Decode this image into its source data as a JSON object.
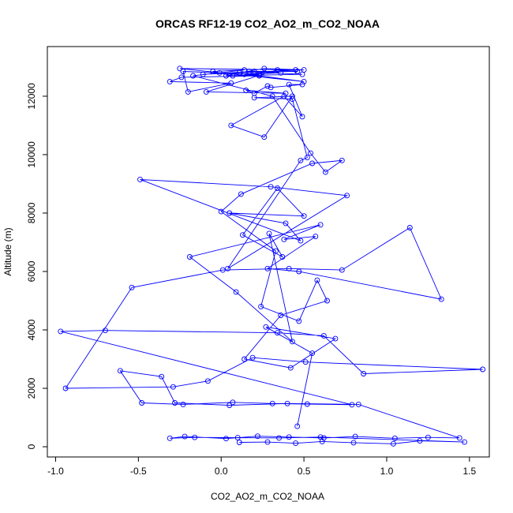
{
  "chart_data": {
    "type": "line",
    "title": "ORCAS RF12-19 CO2_AO2_m_CO2_NOAA",
    "xlabel": "CO2_AO2_m_CO2_NOAA",
    "ylabel": "Altitude (m)",
    "xlim": [
      -1.05,
      1.62
    ],
    "ylim": [
      -350,
      13700
    ],
    "xticks": [
      -1.0,
      -0.5,
      0.0,
      0.5,
      1.0,
      1.5
    ],
    "xtick_labels": [
      "-1.0",
      "-0.5",
      "0.0",
      "0.5",
      "1.0",
      "1.5"
    ],
    "yticks": [
      0,
      2000,
      4000,
      6000,
      8000,
      10000,
      12000
    ],
    "ytick_labels": [
      "0",
      "2000",
      "4000",
      "6000",
      "8000",
      "10000",
      "12000"
    ],
    "grid": false,
    "series": [
      {
        "color": "#0000ff",
        "x": [
          0.11,
          0.28,
          0.45,
          0.61,
          0.8,
          1.04,
          1.2,
          1.47,
          0.6,
          0.35,
          0.1,
          -0.16,
          -0.31,
          -0.22,
          0.03,
          0.22,
          0.41,
          0.62,
          0.81,
          1.05,
          1.25,
          1.44,
          0.83,
          0.4,
          0.05,
          -0.28,
          -0.36,
          -0.61,
          -0.48,
          -0.23,
          0.07,
          0.31,
          0.52,
          0.79,
          -0.97,
          -0.7,
          0.34,
          0.62,
          0.86,
          1.58,
          0.51,
          0.19,
          -0.08,
          -0.29,
          -0.94,
          -0.54,
          0.01,
          0.41,
          0.73,
          1.14,
          1.33,
          0.47,
          0.28,
          0.57,
          0.38,
          0.6,
          -0.19,
          0.09,
          0.43,
          0.29,
          0.37,
          0.13,
          0.34,
          0.5,
          0.05,
          0.39,
          0.48,
          -0.49,
          0.3,
          0.76,
          0.04,
          0.48,
          0.52,
          0.43,
          0.2,
          0.43,
          0.26,
          0.06,
          0.38,
          0.49,
          0.41,
          0.49,
          0.3,
          0.28,
          0.2,
          0.15,
          0.39,
          -0.09,
          0.34,
          0.46,
          0.2,
          -0.11,
          0.5,
          0.26,
          0.11,
          0.03,
          0.49,
          0.17,
          0.36,
          0.14,
          0.45,
          -0.25,
          0.5,
          0.23,
          -0.24,
          -0.31,
          0.06,
          -0.2,
          -0.23,
          0.23,
          0.07,
          -0.05,
          0.14,
          -0.01,
          -0.17,
          0.31,
          0.54,
          0.63,
          0.73,
          0.55,
          0.12,
          0.0,
          0.33,
          0.24,
          0.47,
          0.58,
          0.64,
          0.36,
          0.14,
          0.42,
          0.69,
          0.27,
          0.55,
          0.46
        ],
        "y": [
          150,
          160,
          120,
          180,
          140,
          100,
          200,
          160,
          330,
          300,
          310,
          320,
          290,
          350,
          280,
          360,
          330,
          300,
          350,
          290,
          320,
          300,
          1450,
          1480,
          1420,
          1500,
          2400,
          2600,
          1500,
          1450,
          1520,
          1480,
          1460,
          1440,
          3950,
          3980,
          3900,
          3800,
          2500,
          2650,
          2900,
          3050,
          2250,
          2050,
          2000,
          5450,
          6050,
          6100,
          6050,
          7500,
          5050,
          6000,
          6100,
          7200,
          7100,
          7600,
          6500,
          5300,
          3600,
          7300,
          6500,
          7250,
          8850,
          7900,
          8000,
          7650,
          7050,
          9150,
          8900,
          8600,
          6100,
          9800,
          9900,
          11900,
          11950,
          12000,
          10600,
          11000,
          12000,
          11300,
          12400,
          12400,
          12300,
          12350,
          12100,
          12200,
          12100,
          12150,
          12900,
          12850,
          12850,
          12750,
          12900,
          12950,
          12800,
          12700,
          12750,
          12850,
          12800,
          12750,
          12900,
          12950,
          12500,
          12700,
          12650,
          12500,
          12450,
          12150,
          12850,
          12750,
          12700,
          12850,
          12900,
          12800,
          12700,
          12000,
          10050,
          9400,
          9800,
          9700,
          8650,
          8050,
          6700,
          4800,
          4300,
          5700,
          5000,
          4500,
          3000,
          2700,
          3700,
          4100,
          3200,
          700
        ]
      }
    ]
  }
}
